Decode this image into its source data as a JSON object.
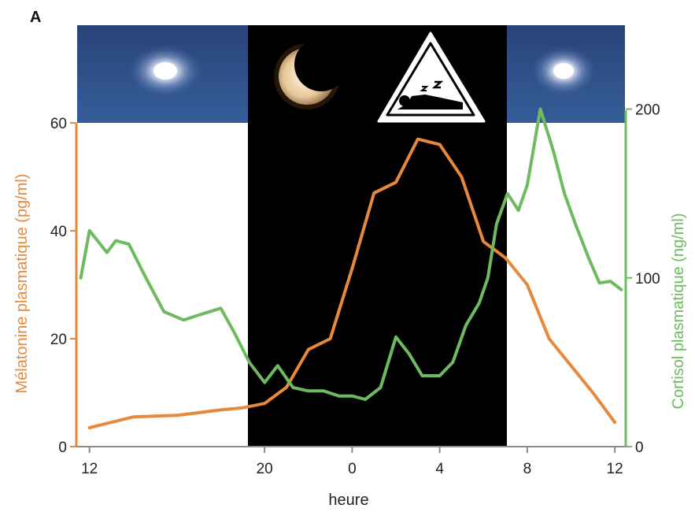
{
  "panel_label": "A",
  "colors": {
    "melatonin": "#e8883a",
    "cortisol": "#6dbb5e",
    "night": "#000000",
    "sky": "#2d4e86",
    "text": "#222222"
  },
  "icons": [
    "sun-glow-icon",
    "crescent-moon-icon",
    "sleeping-person-triangle-icon",
    "sun-glow-icon"
  ],
  "chart_data": {
    "type": "line",
    "xlabel": "heure",
    "x_ticks": [
      "12",
      "20",
      "0",
      "4",
      "8",
      "12"
    ],
    "x_tick_hours": [
      12,
      20,
      24,
      28,
      32,
      36
    ],
    "x_range_hours": [
      11.4,
      36.5
    ],
    "night_hours": [
      20,
      32
    ],
    "left_axis": {
      "label": "Mélatonine plasmatique (pg/ml)",
      "ticks": [
        0,
        20,
        40,
        60
      ],
      "range": [
        0,
        60
      ]
    },
    "right_axis": {
      "label": "Cortisol plasmatique (ng/ml)",
      "ticks": [
        0,
        100,
        200
      ],
      "range": [
        0,
        260
      ]
    },
    "series": [
      {
        "name": "Mélatonine plasmatique (pg/ml)",
        "axis": "left",
        "x": [
          12,
          14,
          16,
          18,
          19,
          20,
          21,
          22,
          23,
          24,
          25,
          26,
          27,
          28,
          29,
          30,
          31,
          32,
          33,
          34,
          35,
          36
        ],
        "y": [
          3.5,
          5.5,
          5.8,
          6.8,
          7.2,
          8,
          11,
          18,
          20,
          33,
          47,
          49,
          57,
          56,
          50,
          38,
          35,
          30,
          20,
          15,
          10,
          4.5
        ]
      },
      {
        "name": "Cortisol plasmatique (ng/ml)",
        "axis": "right",
        "x": [
          11.6,
          12,
          12.8,
          13.2,
          13.8,
          14.5,
          15.4,
          16.3,
          17,
          18,
          18.6,
          19.3,
          20,
          20.6,
          21.3,
          22,
          22.7,
          23.4,
          24,
          24.6,
          25.3,
          26,
          26.6,
          27.2,
          28,
          28.6,
          29.2,
          29.8,
          30.2,
          30.6,
          31.1,
          31.6,
          32,
          32.6,
          33.2,
          33.7,
          34.2,
          34.8,
          35.3,
          35.8,
          36.3
        ],
        "y": [
          100,
          128,
          115,
          122,
          120,
          102,
          80,
          75,
          78,
          82,
          68,
          50,
          38,
          48,
          35,
          33,
          33,
          30,
          30,
          28,
          35,
          65,
          55,
          42,
          42,
          50,
          72,
          85,
          100,
          132,
          150,
          140,
          155,
          200,
          175,
          150,
          132,
          112,
          97,
          98,
          93
        ]
      }
    ]
  }
}
